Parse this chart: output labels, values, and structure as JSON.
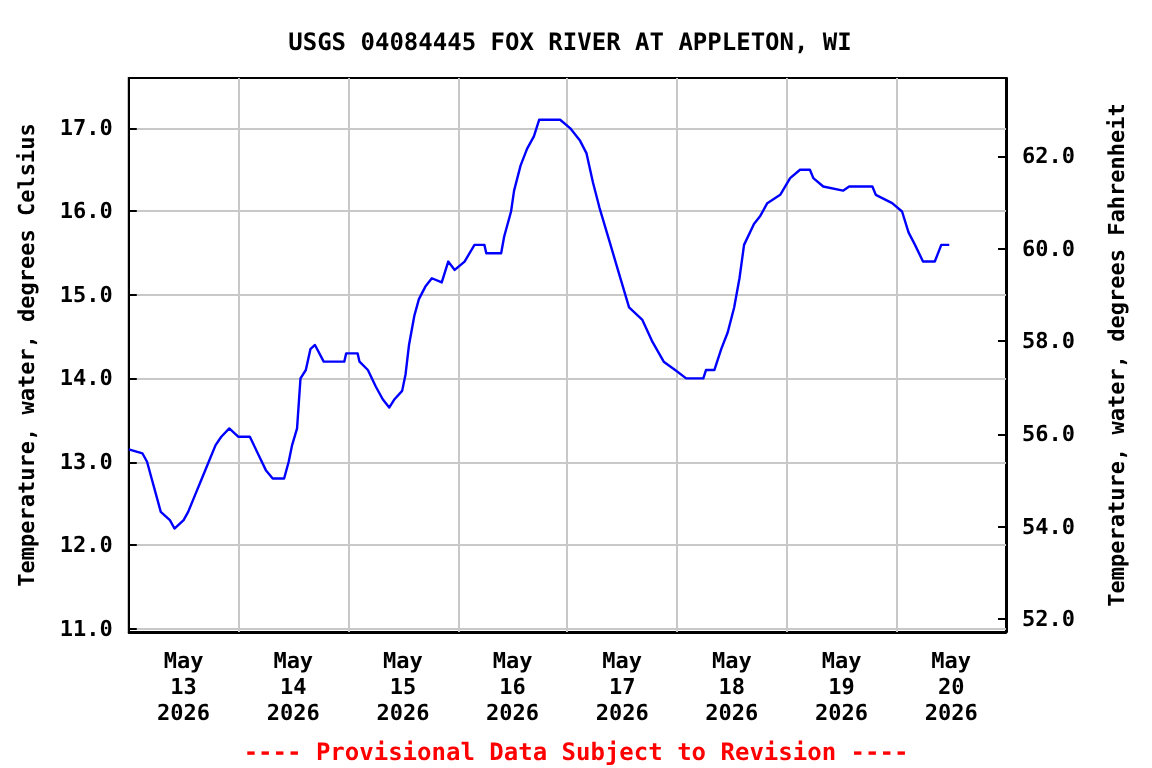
{
  "chart_data": {
    "type": "line",
    "title": "USGS 04084445 FOX RIVER AT APPLETON, WI",
    "ylabel": "Temperature, water, degrees Celsius",
    "y2label": "Temperature, water, degrees Fahrenheit",
    "annotations": [
      "---- Provisional Data Subject to Revision ----"
    ],
    "xlim": [
      "2026-05-13T00:00",
      "2026-05-21T00:00"
    ],
    "xticks": [
      {
        "value": "2026-05-13T12:00",
        "label": "May\n13\n2026"
      },
      {
        "value": "2026-05-14T12:00",
        "label": "May\n14\n2026"
      },
      {
        "value": "2026-05-15T12:00",
        "label": "May\n15\n2026"
      },
      {
        "value": "2026-05-16T12:00",
        "label": "May\n16\n2026"
      },
      {
        "value": "2026-05-17T12:00",
        "label": "May\n17\n2026"
      },
      {
        "value": "2026-05-18T12:00",
        "label": "May\n18\n2026"
      },
      {
        "value": "2026-05-19T12:00",
        "label": "May\n19\n2026"
      },
      {
        "value": "2026-05-20T12:00",
        "label": "May\n20\n2026"
      },
      {
        "value": "2026-05-14T00:00",
        "label": null
      },
      {
        "value": "2026-05-15T00:00",
        "label": null
      },
      {
        "value": "2026-05-16T00:00",
        "label": null
      },
      {
        "value": "2026-05-17T00:00",
        "label": null
      },
      {
        "value": "2026-05-18T00:00",
        "label": null
      },
      {
        "value": "2026-05-19T00:00",
        "label": null
      },
      {
        "value": "2026-05-20T00:00",
        "label": null
      }
    ],
    "ylim": [
      10.96,
      17.6
    ],
    "yticks": [
      {
        "value": 11,
        "label": "11.0"
      },
      {
        "value": 12,
        "label": "12.0"
      },
      {
        "value": 13,
        "label": "13.0"
      },
      {
        "value": 14,
        "label": "14.0"
      },
      {
        "value": 15,
        "label": "15.0"
      },
      {
        "value": 16,
        "label": "16.0"
      },
      {
        "value": 17,
        "label": "17.0"
      }
    ],
    "y2lim": [
      51.73,
      63.68
    ],
    "y2ticks": [
      {
        "value": 52,
        "label": "52.0"
      },
      {
        "value": 54,
        "label": "54.0"
      },
      {
        "value": 56,
        "label": "56.0"
      },
      {
        "value": 58,
        "label": "58.0"
      },
      {
        "value": 60,
        "label": "60.0"
      },
      {
        "value": 62,
        "label": "62.0"
      }
    ],
    "grid": true,
    "marker": "none",
    "series": [
      {
        "color": "#0000ff",
        "x": [
          "2026-05-13T00:00",
          "2026-05-13T03:00",
          "2026-05-13T04:00",
          "2026-05-13T05:00",
          "2026-05-13T06:00",
          "2026-05-13T07:00",
          "2026-05-13T09:00",
          "2026-05-13T10:00",
          "2026-05-13T12:00",
          "2026-05-13T13:00",
          "2026-05-13T14:30",
          "2026-05-13T16:00",
          "2026-05-13T17:30",
          "2026-05-13T19:00",
          "2026-05-13T20:15",
          "2026-05-13T22:00",
          "2026-05-14T00:00",
          "2026-05-14T02:30",
          "2026-05-14T04:15",
          "2026-05-14T06:00",
          "2026-05-14T07:30",
          "2026-05-14T10:00",
          "2026-05-14T11:00",
          "2026-05-14T11:45",
          "2026-05-14T12:50",
          "2026-05-14T13:35",
          "2026-05-14T14:45",
          "2026-05-14T15:45",
          "2026-05-14T16:45",
          "2026-05-14T18:40",
          "2026-05-14T23:10",
          "2026-05-14T23:35",
          "2026-05-15T02:05",
          "2026-05-15T02:30",
          "2026-05-15T04:20",
          "2026-05-15T06:05",
          "2026-05-15T07:35",
          "2026-05-15T09:00",
          "2026-05-15T10:10",
          "2026-05-15T11:50",
          "2026-05-15T12:35",
          "2026-05-15T13:20",
          "2026-05-15T14:30",
          "2026-05-15T15:30",
          "2026-05-15T16:55",
          "2026-05-15T18:20",
          "2026-05-15T20:30",
          "2026-05-15T21:55",
          "2026-05-15T23:20",
          "2026-05-16T01:30",
          "2026-05-16T03:40",
          "2026-05-16T05:50",
          "2026-05-16T06:15",
          "2026-05-16T09:30",
          "2026-05-16T10:10",
          "2026-05-16T11:40",
          "2026-05-16T12:20",
          "2026-05-16T13:45",
          "2026-05-16T15:10",
          "2026-05-16T16:40",
          "2026-05-16T17:50",
          "2026-05-16T22:25",
          "2026-05-17T00:35",
          "2026-05-17T02:45",
          "2026-05-17T04:10",
          "2026-05-17T05:35",
          "2026-05-17T07:00",
          "2026-05-17T09:10",
          "2026-05-17T11:20",
          "2026-05-17T13:30",
          "2026-05-17T16:25",
          "2026-05-17T18:30",
          "2026-05-17T21:05",
          "2026-05-17T23:35",
          "2026-05-18T02:00",
          "2026-05-18T05:45",
          "2026-05-18T06:20",
          "2026-05-18T08:10",
          "2026-05-18T09:40",
          "2026-05-18T11:05",
          "2026-05-18T12:30",
          "2026-05-18T13:40",
          "2026-05-18T14:40",
          "2026-05-18T16:50",
          "2026-05-18T18:15",
          "2026-05-18T19:45",
          "2026-05-18T22:35",
          "2026-05-19T00:45",
          "2026-05-19T02:55",
          "2026-05-19T05:05",
          "2026-05-19T05:50",
          "2026-05-19T08:00",
          "2026-05-19T12:20",
          "2026-05-19T13:40",
          "2026-05-19T18:45",
          "2026-05-19T19:30",
          "2026-05-19T23:05",
          "2026-05-20T01:15",
          "2026-05-20T02:40",
          "2026-05-20T04:05",
          "2026-05-20T05:50",
          "2026-05-20T08:25",
          "2026-05-20T09:50",
          "2026-05-20T11:35"
        ],
        "values": [
          13.15,
          13.1,
          13.0,
          12.8,
          12.6,
          12.4,
          12.3,
          12.2,
          12.3,
          12.4,
          12.6,
          12.8,
          13.0,
          13.2,
          13.3,
          13.4,
          13.3,
          13.3,
          13.1,
          12.9,
          12.8,
          12.8,
          13.0,
          13.2,
          13.4,
          14.0,
          14.1,
          14.35,
          14.4,
          14.2,
          14.2,
          14.3,
          14.3,
          14.2,
          14.1,
          13.9,
          13.75,
          13.65,
          13.75,
          13.85,
          14.05,
          14.4,
          14.75,
          14.95,
          15.1,
          15.2,
          15.15,
          15.4,
          15.3,
          15.4,
          15.6,
          15.6,
          15.5,
          15.5,
          15.7,
          16.0,
          16.25,
          16.55,
          16.75,
          16.9,
          17.1,
          17.1,
          17.0,
          16.85,
          16.7,
          16.35,
          16.05,
          15.65,
          15.25,
          14.85,
          14.7,
          14.45,
          14.2,
          14.1,
          14.0,
          14.0,
          14.1,
          14.1,
          14.35,
          14.55,
          14.85,
          15.2,
          15.6,
          15.85,
          15.95,
          16.1,
          16.2,
          16.4,
          16.5,
          16.5,
          16.4,
          16.3,
          16.25,
          16.3,
          16.3,
          16.2,
          16.1,
          16.0,
          15.75,
          15.6,
          15.4,
          15.4,
          15.6,
          15.6
        ]
      }
    ]
  }
}
